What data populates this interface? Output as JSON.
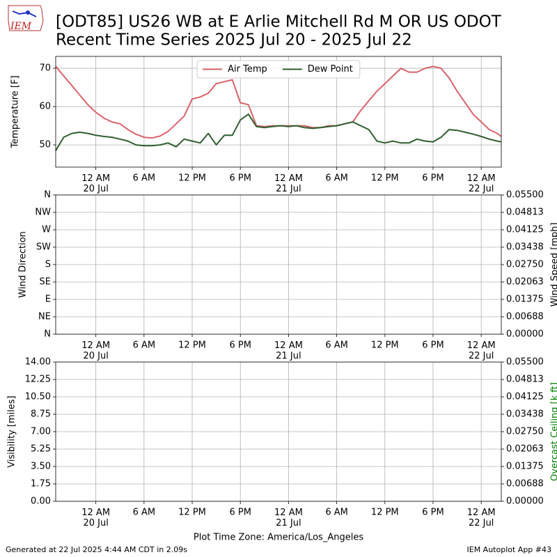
{
  "header": {
    "title": [
      "[ODT85] US26 WB at E Arlie Mitchell Rd M OR US ODOT",
      "Recent Time Series 2025 Jul 20 - 2025 Jul 22"
    ],
    "logo": "IEM"
  },
  "footer": {
    "left": "Generated at 22 Jul 2025 4:44 AM CDT in 2.09s",
    "right": "IEM Autoplot App #43"
  },
  "chart_data": [
    {
      "type": "line",
      "ylabel": "Temperature [F]",
      "grid": true,
      "legend": "upper center",
      "xlim": [
        "2025-07-19 19:00",
        "2025-07-22 02:30"
      ],
      "xticks": [
        {
          "value": "2025-07-20 00:00",
          "label": "12 AM\n20 Jul"
        },
        {
          "value": "2025-07-20 06:00",
          "label": "6 AM"
        },
        {
          "value": "2025-07-20 12:00",
          "label": "12 PM"
        },
        {
          "value": "2025-07-20 18:00",
          "label": "6 PM"
        },
        {
          "value": "2025-07-21 00:00",
          "label": "12 AM\n21 Jul"
        },
        {
          "value": "2025-07-21 06:00",
          "label": "6 AM"
        },
        {
          "value": "2025-07-21 12:00",
          "label": "12 PM"
        },
        {
          "value": "2025-07-21 18:00",
          "label": "6 PM"
        },
        {
          "value": "2025-07-22 00:00",
          "label": "12 AM\n22 Jul"
        }
      ],
      "ylim": [
        44.2,
        73.1
      ],
      "yticks": [
        50,
        60,
        70
      ],
      "x": [
        "2025-07-19 19:00",
        "2025-07-19 20:00",
        "2025-07-19 21:00",
        "2025-07-19 22:00",
        "2025-07-19 23:00",
        "2025-07-20 00:00",
        "2025-07-20 01:00",
        "2025-07-20 02:00",
        "2025-07-20 03:00",
        "2025-07-20 04:00",
        "2025-07-20 05:00",
        "2025-07-20 06:00",
        "2025-07-20 07:00",
        "2025-07-20 08:00",
        "2025-07-20 09:00",
        "2025-07-20 10:00",
        "2025-07-20 11:00",
        "2025-07-20 12:00",
        "2025-07-20 13:00",
        "2025-07-20 14:00",
        "2025-07-20 15:00",
        "2025-07-20 16:00",
        "2025-07-20 17:00",
        "2025-07-20 18:00",
        "2025-07-20 19:00",
        "2025-07-20 20:00",
        "2025-07-20 21:00",
        "2025-07-20 22:00",
        "2025-07-20 23:00",
        "2025-07-21 00:00",
        "2025-07-21 01:00",
        "2025-07-21 02:00",
        "2025-07-21 03:00",
        "2025-07-21 04:00",
        "2025-07-21 05:00",
        "2025-07-21 06:00",
        "2025-07-21 07:00",
        "2025-07-21 08:00",
        "2025-07-21 09:00",
        "2025-07-21 10:00",
        "2025-07-21 11:00",
        "2025-07-21 12:00",
        "2025-07-21 13:00",
        "2025-07-21 14:00",
        "2025-07-21 15:00",
        "2025-07-21 16:00",
        "2025-07-21 17:00",
        "2025-07-21 18:00",
        "2025-07-21 19:00",
        "2025-07-21 20:00",
        "2025-07-21 21:00",
        "2025-07-21 22:00",
        "2025-07-21 23:00",
        "2025-07-22 00:00",
        "2025-07-22 01:00",
        "2025-07-22 02:00",
        "2025-07-22 02:30"
      ],
      "series": [
        {
          "name": "Air Temp",
          "color": "#d9626a",
          "values": [
            70.5,
            68,
            65.5,
            63,
            60.5,
            58.5,
            57,
            56,
            55.5,
            54,
            52.8,
            52,
            51.8,
            52.3,
            53.5,
            55.5,
            57.5,
            62,
            62.5,
            63.5,
            66,
            66.5,
            67,
            61,
            60.5,
            55,
            54.8,
            55,
            55,
            55,
            55,
            55,
            54.5,
            54.5,
            55,
            55,
            55.5,
            56,
            59,
            61.5,
            64,
            66,
            68,
            70,
            69,
            69,
            70,
            70.5,
            70,
            67.5,
            64,
            61,
            58,
            56,
            54,
            53,
            52.2
          ]
        },
        {
          "name": "Dew Point",
          "color": "#2e5e2e",
          "values": [
            48.5,
            52,
            53,
            53.3,
            53,
            52.5,
            52.2,
            52,
            51.5,
            51,
            50,
            49.8,
            49.8,
            50,
            50.5,
            49.5,
            51.5,
            51,
            50.5,
            53,
            50,
            52.5,
            52.5,
            56.5,
            58,
            54.8,
            54.5,
            54.8,
            55,
            54.8,
            55,
            54.5,
            54.3,
            54.5,
            54.8,
            55,
            55.5,
            56,
            55,
            54,
            51,
            50.5,
            51,
            50.5,
            50.5,
            51.5,
            51,
            50.8,
            52,
            54,
            53.8,
            53.3,
            52.8,
            52.2,
            51.5,
            51,
            50.8
          ]
        }
      ]
    },
    {
      "type": "line",
      "ylabel": "Wind Direction",
      "y2label": "Wind Speed [mph]",
      "grid": true,
      "xlim": [
        "2025-07-19 19:00",
        "2025-07-22 02:30"
      ],
      "xticks": [
        {
          "value": "2025-07-20 00:00",
          "label": "12 AM\n20 Jul"
        },
        {
          "value": "2025-07-20 06:00",
          "label": "6 AM"
        },
        {
          "value": "2025-07-20 12:00",
          "label": "12 PM"
        },
        {
          "value": "2025-07-20 18:00",
          "label": "6 PM"
        },
        {
          "value": "2025-07-21 00:00",
          "label": "12 AM\n21 Jul"
        },
        {
          "value": "2025-07-21 06:00",
          "label": "6 AM"
        },
        {
          "value": "2025-07-21 12:00",
          "label": "12 PM"
        },
        {
          "value": "2025-07-21 18:00",
          "label": "6 PM"
        },
        {
          "value": "2025-07-22 00:00",
          "label": "12 AM\n22 Jul"
        }
      ],
      "ylim": [
        0,
        360
      ],
      "yticks": [
        {
          "value": 0,
          "label": "N"
        },
        {
          "value": 45,
          "label": "NE"
        },
        {
          "value": 90,
          "label": "E"
        },
        {
          "value": 135,
          "label": "SE"
        },
        {
          "value": 180,
          "label": "S"
        },
        {
          "value": 225,
          "label": "SW"
        },
        {
          "value": 270,
          "label": "W"
        },
        {
          "value": 315,
          "label": "NW"
        },
        {
          "value": 360,
          "label": "N"
        }
      ],
      "y2lim": [
        0,
        0.055
      ],
      "y2ticks": [
        {
          "value": 0,
          "label": "0.00000"
        },
        {
          "value": 0.006875,
          "label": "0.00688"
        },
        {
          "value": 0.01375,
          "label": "0.01375"
        },
        {
          "value": 0.020625,
          "label": "0.02063"
        },
        {
          "value": 0.0275,
          "label": "0.02750"
        },
        {
          "value": 0.034375,
          "label": "0.03438"
        },
        {
          "value": 0.04125,
          "label": "0.04125"
        },
        {
          "value": 0.048125,
          "label": "0.04813"
        },
        {
          "value": 0.055,
          "label": "0.05500"
        }
      ]
    },
    {
      "type": "line",
      "ylabel": "Visibility [miles]",
      "y2label": "Overcast Ceiling [k ft]",
      "y2label_color": "#008000",
      "xlabel": "Plot Time Zone: America/Los_Angeles",
      "grid": true,
      "xlim": [
        "2025-07-19 19:00",
        "2025-07-22 02:30"
      ],
      "xticks": [
        {
          "value": "2025-07-20 00:00",
          "label": "12 AM\n20 Jul"
        },
        {
          "value": "2025-07-20 06:00",
          "label": "6 AM"
        },
        {
          "value": "2025-07-20 12:00",
          "label": "12 PM"
        },
        {
          "value": "2025-07-20 18:00",
          "label": "6 PM"
        },
        {
          "value": "2025-07-21 00:00",
          "label": "12 AM\n21 Jul"
        },
        {
          "value": "2025-07-21 06:00",
          "label": "6 AM"
        },
        {
          "value": "2025-07-21 12:00",
          "label": "12 PM"
        },
        {
          "value": "2025-07-21 18:00",
          "label": "6 PM"
        },
        {
          "value": "2025-07-22 00:00",
          "label": "12 AM\n22 Jul"
        }
      ],
      "ylim": [
        0,
        14
      ],
      "yticks": [
        {
          "value": 0,
          "label": "0.00"
        },
        1.75,
        {
          "value": 3.5,
          "label": "3.50"
        },
        5.25,
        {
          "value": 7,
          "label": "7.00"
        },
        8.75,
        {
          "value": 10.5,
          "label": "10.50"
        },
        12.25,
        {
          "value": 14,
          "label": "14.00"
        }
      ],
      "y2lim": [
        0,
        0.055
      ],
      "y2ticks": [
        {
          "value": 0,
          "label": "0.00000"
        },
        {
          "value": 0.006875,
          "label": "0.00688"
        },
        {
          "value": 0.01375,
          "label": "0.01375"
        },
        {
          "value": 0.020625,
          "label": "0.02063"
        },
        {
          "value": 0.0275,
          "label": "0.02750"
        },
        {
          "value": 0.034375,
          "label": "0.03438"
        },
        {
          "value": 0.04125,
          "label": "0.04125"
        },
        {
          "value": 0.048125,
          "label": "0.04813"
        },
        {
          "value": 0.055,
          "label": "0.05500"
        }
      ]
    }
  ]
}
